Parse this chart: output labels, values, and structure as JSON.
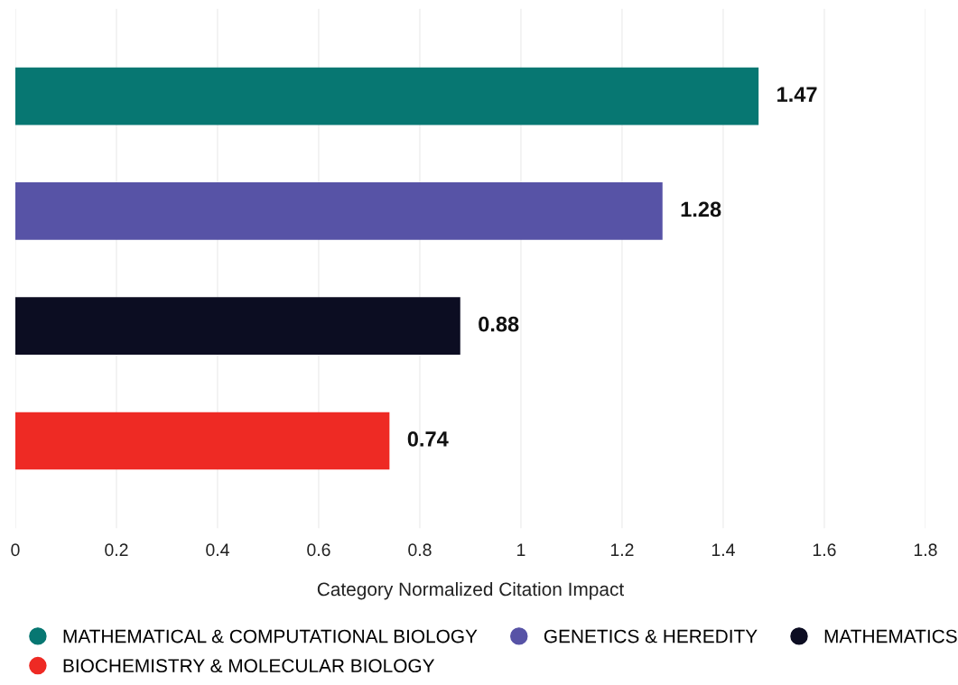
{
  "chart_data": {
    "type": "bar",
    "orientation": "horizontal",
    "xlabel": "Category Normalized Citation Impact",
    "categories": [
      null,
      null,
      null,
      null
    ],
    "series": [
      {
        "name": "MATHEMATICAL & COMPUTATIONAL BIOLOGY",
        "color": "#077772",
        "values": [
          1.47,
          null,
          null,
          null
        ]
      },
      {
        "name": "GENETICS & HEREDITY",
        "color": "#5753a6",
        "values": [
          null,
          1.28,
          null,
          null
        ]
      },
      {
        "name": "MATHEMATICS",
        "color": "#0c0d22",
        "values": [
          null,
          null,
          0.88,
          null
        ]
      },
      {
        "name": "BIOCHEMISTRY & MOLECULAR BIOLOGY",
        "color": "#ee2a24",
        "values": [
          null,
          null,
          null,
          0.74
        ]
      }
    ],
    "xlim": [
      0,
      1.8
    ],
    "xticks": [
      0,
      0.2,
      0.4,
      0.6,
      0.8,
      1,
      1.2,
      1.4,
      1.6,
      1.8
    ],
    "grid": "x",
    "legend": "bottom",
    "data_labels": true
  }
}
